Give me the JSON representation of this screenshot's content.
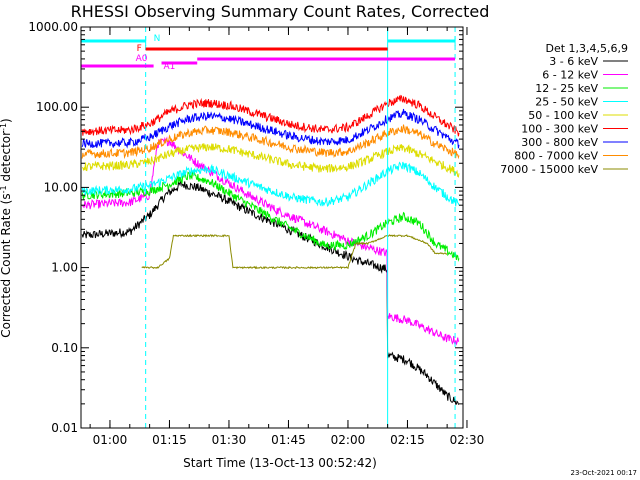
{
  "colors": {
    "3-6": "#000000",
    "6-12": "#ff00ff",
    "12-25": "#00ee00",
    "25-50": "#00ffff",
    "50-100": "#dddd00",
    "100-300": "#ff0000",
    "300-800": "#0000ff",
    "800-7000": "#ff8c00",
    "7000-15000": "#8b8b00",
    "markers": "#00ffff",
    "frontsegment": "#ff0000",
    "attenuator": "#ff00ff"
  },
  "chart_data": {
    "type": "line",
    "title": "RHESSI Observing Summary Count Rates, Corrected",
    "xlabel": "Start Time (13-Oct-13 00:52:42)",
    "ylabel": "Corrected Count Rate (s⁻¹ detector⁻¹)",
    "ylabel_main": "Corrected Count Rate (s",
    "ylabel_sup1": "-1",
    "ylabel_mid": " detector",
    "ylabel_sup2": "-1",
    "ylabel_end": ")",
    "yscale": "log",
    "ylim": [
      0.01,
      1000
    ],
    "xlim": [
      "00:52:42",
      "02:29:00"
    ],
    "x_ticks": [
      "01:00",
      "01:15",
      "01:30",
      "01:45",
      "02:00",
      "02:15",
      "02:30"
    ],
    "y_ticks": [
      "1000.00",
      "100.00",
      "10.00",
      "1.00",
      "0.10",
      "0.01"
    ],
    "legend": {
      "title": "Det 1,3,4,5,6,9",
      "placement": "top-right-outside",
      "entries": [
        "3 - 6 keV",
        "6 - 12 keV",
        "12 - 25 keV",
        "25 - 50 keV",
        "50 - 100 keV",
        "100 - 300 keV",
        "300 - 800 keV",
        "800 - 7000 keV",
        "7000 - 15000 keV"
      ]
    },
    "series": [
      {
        "name": "3 - 6 keV",
        "key": "3-6",
        "x": [
          "00:53",
          "01:05",
          "01:10",
          "01:14",
          "01:18",
          "01:22",
          "01:28",
          "01:35",
          "01:42",
          "01:50",
          "01:57",
          "02:03",
          "02:10",
          "02:10",
          "02:15",
          "02:20",
          "02:25",
          "02:28"
        ],
        "values": [
          2.5,
          2.8,
          4.5,
          8,
          11,
          10,
          7.5,
          5,
          3.5,
          2.3,
          1.6,
          1.2,
          0.95,
          0.08,
          0.07,
          0.045,
          0.025,
          0.02
        ]
      },
      {
        "name": "6 - 12 keV",
        "key": "6-12",
        "x": [
          "00:53",
          "01:05",
          "01:10",
          "01:12",
          "01:15",
          "01:18",
          "01:22",
          "01:28",
          "01:35",
          "01:42",
          "01:50",
          "01:57",
          "02:03",
          "02:10",
          "02:10",
          "02:15",
          "02:20",
          "02:25",
          "02:28"
        ],
        "values": [
          6,
          6.5,
          8,
          35,
          38,
          28,
          20,
          13,
          8,
          5.2,
          3.5,
          2.5,
          1.9,
          1.5,
          0.25,
          0.22,
          0.17,
          0.13,
          0.12
        ]
      },
      {
        "name": "12 - 25 keV",
        "key": "12-25",
        "x": [
          "00:53",
          "01:05",
          "01:10",
          "01:15",
          "01:20",
          "01:25",
          "01:30",
          "01:38",
          "01:46",
          "01:54",
          "02:00",
          "02:05",
          "02:10",
          "02:14",
          "02:18",
          "02:22",
          "02:28"
        ],
        "values": [
          8,
          8.5,
          9,
          11,
          14,
          12,
          8.5,
          5,
          3,
          1.9,
          1.9,
          2.5,
          3.6,
          4.3,
          3.6,
          2,
          1.3
        ]
      },
      {
        "name": "25 - 50 keV",
        "key": "25-50",
        "x": [
          "00:53",
          "01:05",
          "01:10",
          "01:15",
          "01:20",
          "01:25",
          "01:30",
          "01:38",
          "01:46",
          "01:54",
          "02:00",
          "02:05",
          "02:10",
          "02:14",
          "02:18",
          "02:22",
          "02:28"
        ],
        "values": [
          9,
          9.5,
          10.5,
          13,
          16,
          17,
          14,
          10,
          7.5,
          6.5,
          7.5,
          11,
          16,
          19,
          15,
          10,
          6
        ]
      },
      {
        "name": "50 - 100 keV",
        "key": "50-100",
        "x": [
          "00:53",
          "01:05",
          "01:10",
          "01:15",
          "01:20",
          "01:25",
          "01:30",
          "01:38",
          "01:46",
          "01:54",
          "02:00",
          "02:05",
          "02:10",
          "02:14",
          "02:18",
          "02:22",
          "02:28"
        ],
        "values": [
          18,
          19,
          21,
          26,
          30,
          32,
          30,
          24,
          19,
          17,
          18,
          22,
          28,
          31,
          26,
          21,
          15
        ]
      },
      {
        "name": "100 - 300 keV",
        "key": "100-300",
        "x": [
          "00:53",
          "01:05",
          "01:10",
          "01:15",
          "01:20",
          "01:25",
          "01:30",
          "01:38",
          "01:46",
          "01:54",
          "02:00",
          "02:05",
          "02:10",
          "02:14",
          "02:18",
          "02:22",
          "02:28"
        ],
        "values": [
          50,
          52,
          62,
          88,
          108,
          113,
          105,
          80,
          60,
          52,
          56,
          78,
          112,
          128,
          105,
          75,
          48
        ]
      },
      {
        "name": "300 - 800 keV",
        "key": "300-800",
        "x": [
          "00:53",
          "01:05",
          "01:10",
          "01:15",
          "01:20",
          "01:25",
          "01:30",
          "01:38",
          "01:46",
          "01:54",
          "02:00",
          "02:05",
          "02:10",
          "02:14",
          "02:18",
          "02:22",
          "02:28"
        ],
        "values": [
          35,
          36,
          42,
          58,
          72,
          78,
          72,
          56,
          43,
          37,
          39,
          52,
          72,
          84,
          70,
          52,
          34
        ]
      },
      {
        "name": "800 - 7000 keV",
        "key": "800-7000",
        "x": [
          "00:53",
          "01:05",
          "01:10",
          "01:15",
          "01:20",
          "01:25",
          "01:30",
          "01:38",
          "01:46",
          "01:54",
          "02:00",
          "02:05",
          "02:10",
          "02:14",
          "02:18",
          "02:22",
          "02:28"
        ],
        "values": [
          26,
          27,
          31,
          40,
          48,
          52,
          49,
          39,
          31,
          27,
          28,
          36,
          48,
          54,
          46,
          35,
          25
        ]
      },
      {
        "name": "7000 - 15000 keV",
        "key": "7000-15000",
        "x": [
          "01:08",
          "01:12",
          "01:15",
          "01:16",
          "01:20",
          "01:25",
          "01:30",
          "01:31",
          "01:35",
          "01:42",
          "01:48",
          "01:55",
          "02:00",
          "02:02",
          "02:05",
          "02:10",
          "02:15",
          "02:20",
          "02:22",
          "02:25"
        ],
        "values": [
          1.0,
          1.0,
          1.3,
          2.5,
          2.5,
          2.5,
          2.5,
          1.0,
          1.0,
          1.0,
          1.0,
          1.0,
          1.0,
          2.0,
          2.0,
          2.5,
          2.5,
          2.0,
          1.5,
          1.5
        ]
      }
    ],
    "markers": {
      "vertical_lines": [
        {
          "x": "00:52:42",
          "style": "solid"
        },
        {
          "x": "01:09",
          "style": "dashed"
        },
        {
          "x": "02:10",
          "style": "solid"
        },
        {
          "x": "02:27",
          "style": "dashed"
        }
      ],
      "night_bars": [
        {
          "from": "00:52:42",
          "to": "01:09",
          "label": "N"
        },
        {
          "from": "02:10",
          "to": "02:27",
          "label": ""
        }
      ],
      "front_segment": {
        "from": "01:09",
        "to": "02:10",
        "label": "F"
      },
      "attenuator": [
        {
          "from": "00:52:42",
          "to": "01:11",
          "label": "A0"
        },
        {
          "from": "01:13",
          "to": "01:22",
          "label": "A1"
        },
        {
          "from": "01:22",
          "to": "02:27",
          "label": ""
        }
      ]
    },
    "date_stamp": "23-Oct-2021 00:17"
  }
}
